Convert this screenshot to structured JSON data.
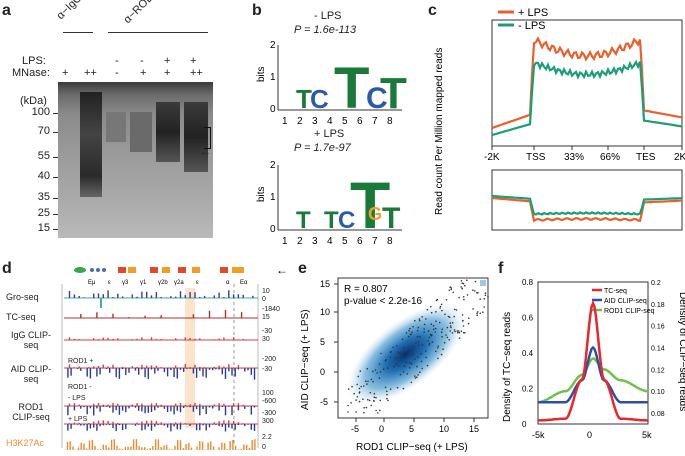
{
  "panels": {
    "a": "a",
    "b": "b",
    "c": "c",
    "d": "d",
    "e": "e",
    "f": "f"
  },
  "panel_a": {
    "antibody_igg": "α−IgG",
    "antibody_rod1": "α−ROD1",
    "row_lps": "LPS:",
    "row_mnase": "MNase:",
    "lps_values": [
      "",
      "",
      "-",
      "-",
      "+",
      "+"
    ],
    "mnase_values": [
      "+",
      "++",
      "-",
      "+",
      "+",
      "++"
    ],
    "unit": "(kDa)",
    "ladder": [
      "100",
      "70",
      "55",
      "40",
      "35",
      "25",
      "15"
    ]
  },
  "panel_b": {
    "top_title": "- LPS",
    "top_p": "P = 1.6e-113",
    "bottom_title": "+ LPS",
    "bottom_p": "P = 1.7e-97",
    "ylabel": "bits",
    "yticks": [
      "2",
      "1",
      "0"
    ],
    "positions": [
      "1",
      "2",
      "3",
      "4",
      "5",
      "6",
      "7",
      "8"
    ],
    "top_letters": [
      "T",
      "C",
      "T",
      "C",
      "T"
    ],
    "bottom_letters": [
      "T",
      "T",
      "C",
      "T",
      "G",
      "T"
    ]
  },
  "panel_c": {
    "ylabel": "Read count Per Million mapped reads",
    "legend_plus": "+ LPS",
    "legend_minus": "- LPS",
    "xticks": [
      "-2K",
      "TSS",
      "33%",
      "66%",
      "TES",
      "2K"
    ],
    "color_plus": "#e8602c",
    "color_minus": "#1a9e77"
  },
  "panel_d": {
    "tracks": [
      "Gro-seq",
      "TC-seq",
      "IgG CLIP-seq",
      "AID CLIP-seq",
      "ROD1 CLIP-seq",
      "H3K27Ac"
    ],
    "gene_labels": [
      "Eμ",
      "ε",
      "γ3",
      "γ1",
      "γ2b",
      "γ2a",
      "ε",
      "α",
      "Eα"
    ],
    "scale_top": [
      "10",
      "0",
      "-1840",
      "15",
      "-30",
      "30",
      "-200",
      "-30",
      "100",
      "-600",
      "-300",
      "300",
      "2.2",
      "0"
    ],
    "strand_plus": "ROD1 +",
    "strand_minus": "ROD1 -",
    "lps_minus": "- LPS",
    "lps_plus": "+ LPS",
    "h3k_color": "#f08a2e"
  },
  "panel_e": {
    "stat_r": "R = 0.807",
    "stat_p": "p-value < 2.2e-16",
    "xlabel": "ROD1 CLIP−seq (+ LPS)",
    "ylabel": "AID CLIP−seq (+ LPS)",
    "xticks": [
      "-5",
      "0",
      "5",
      "10",
      "15"
    ],
    "yticks": [
      "-5",
      "0",
      "5",
      "10",
      "15"
    ]
  },
  "panel_f": {
    "ylabel_left": "Density of TC−seq reads",
    "ylabel_right": "Density of CLIP−seq reads",
    "legend": [
      "TC-seq",
      "AID CLIP-seq",
      "ROD1 CLIP-seq"
    ],
    "colors": [
      "#e8262b",
      "#2b4fa8",
      "#6cc24a"
    ],
    "xticks": [
      "-5k",
      "0",
      "5k"
    ],
    "yticks_left": [
      "0",
      "0.2",
      "0.4",
      "0.6",
      "0.8"
    ],
    "yticks_right": [
      "0.08",
      "0.10",
      "0.12",
      "0.14",
      "0.16",
      "0.18",
      "0.2"
    ]
  },
  "chart_data": [
    {
      "type": "line",
      "title": "c",
      "xlabel": "",
      "ylabel": "Read count Per Million mapped reads",
      "categories": [
        "-2K",
        "TSS",
        "33%",
        "66%",
        "TES",
        "2K"
      ],
      "series": [
        {
          "name": "+ LPS",
          "values": [
            0.25,
            0.72,
            0.7,
            0.7,
            0.75,
            0.22
          ]
        },
        {
          "name": "- LPS",
          "values": [
            0.2,
            0.58,
            0.55,
            0.55,
            0.6,
            0.18
          ]
        }
      ]
    },
    {
      "type": "line",
      "title": "f",
      "xlabel": "",
      "ylabel": "Density of TC−seq reads",
      "x": [
        -5,
        -2.5,
        -1,
        0,
        1,
        2.5,
        5
      ],
      "series": [
        {
          "name": "TC-seq",
          "values": [
            0.02,
            0.03,
            0.25,
            0.68,
            0.25,
            0.03,
            0.02
          ]
        },
        {
          "name": "AID CLIP-seq",
          "values": [
            0.09,
            0.09,
            0.11,
            0.14,
            0.11,
            0.09,
            0.09
          ]
        },
        {
          "name": "ROD1 CLIP-seq",
          "values": [
            0.09,
            0.1,
            0.115,
            0.13,
            0.12,
            0.11,
            0.1
          ]
        }
      ],
      "ylim": [
        0,
        0.8
      ]
    },
    {
      "type": "scatter",
      "title": "e",
      "xlabel": "ROD1 CLIP−seq (+ LPS)",
      "ylabel": "AID CLIP−seq (+ LPS)",
      "r": 0.807,
      "xlim": [
        -6,
        17
      ],
      "ylim": [
        -6,
        17
      ]
    }
  ]
}
